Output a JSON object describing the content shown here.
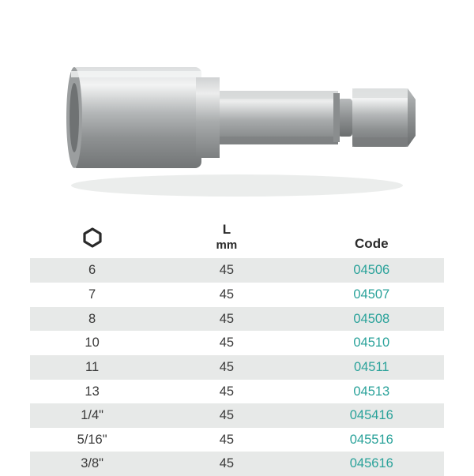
{
  "image": {
    "body_fill": "#b9bcbd",
    "body_dark": "#8c8f90",
    "body_light": "#e6e8e8",
    "shadow": "#808384"
  },
  "table": {
    "row_shade_color": "#e7e9e8",
    "text_color": "#3a3a3a",
    "code_color": "#2aa29a",
    "header_color": "#2a2a2a",
    "fontsize": 16.5,
    "header_fontsize": 17,
    "columns": {
      "size_icon": "hexagon",
      "length_label": "L",
      "length_unit": "mm",
      "code_label": "Code"
    },
    "rows": [
      {
        "size": "6",
        "length": "45",
        "code": "04506",
        "shade": true
      },
      {
        "size": "7",
        "length": "45",
        "code": "04507",
        "shade": false
      },
      {
        "size": "8",
        "length": "45",
        "code": "04508",
        "shade": true
      },
      {
        "size": "10",
        "length": "45",
        "code": "04510",
        "shade": false
      },
      {
        "size": "11",
        "length": "45",
        "code": "04511",
        "shade": true
      },
      {
        "size": "13",
        "length": "45",
        "code": "04513",
        "shade": false
      },
      {
        "size": "1/4\"",
        "length": "45",
        "code": "045416",
        "shade": true
      },
      {
        "size": "5/16\"",
        "length": "45",
        "code": "045516",
        "shade": false
      },
      {
        "size": "3/8\"",
        "length": "45",
        "code": "045616",
        "shade": true
      }
    ]
  }
}
